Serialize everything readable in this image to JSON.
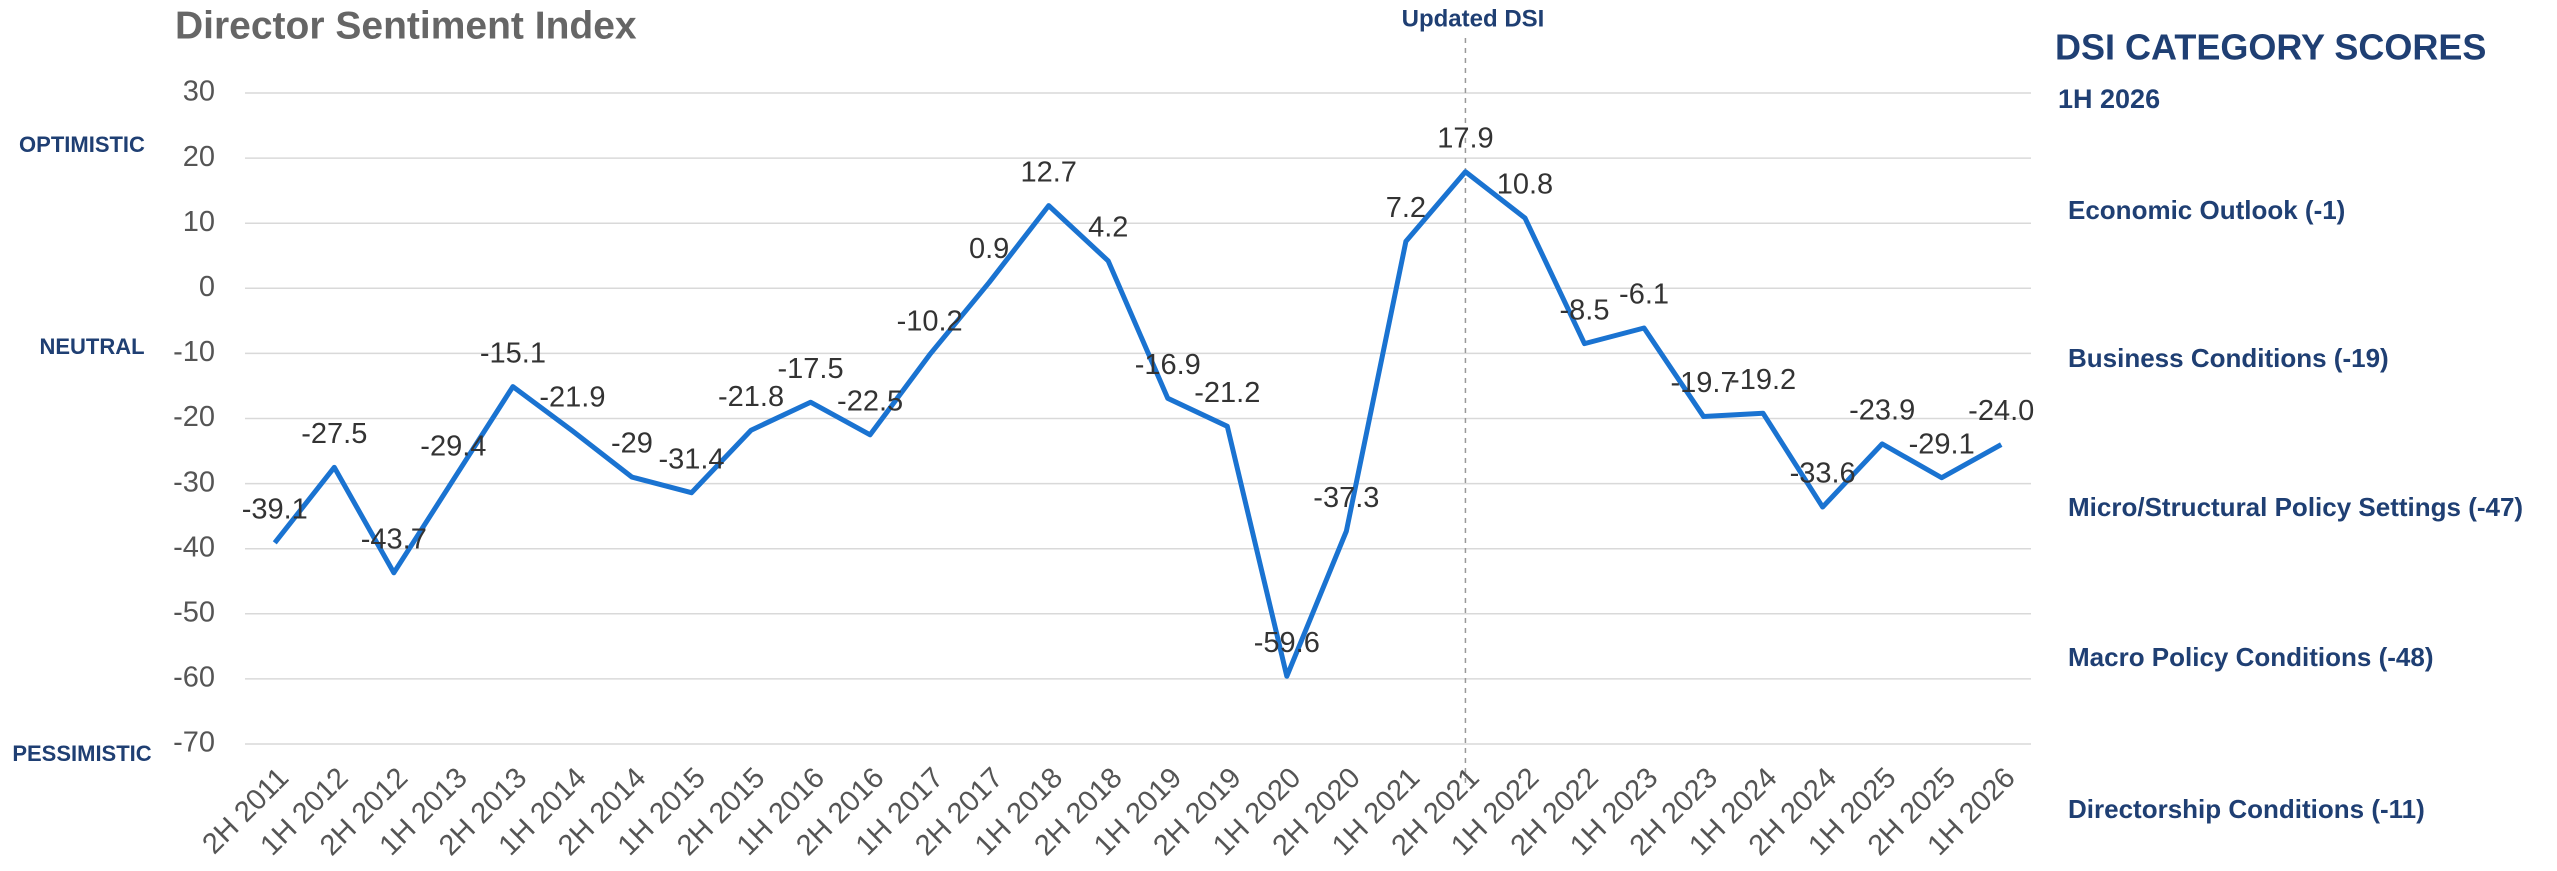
{
  "chart_data": {
    "type": "line",
    "title": "Director Sentiment Index",
    "categories": [
      "2H 2011",
      "1H 2012",
      "2H 2012",
      "1H 2013",
      "2H 2013",
      "1H 2014",
      "2H 2014",
      "1H 2015",
      "2H 2015",
      "1H 2016",
      "2H 2016",
      "1H 2017",
      "2H 2017",
      "1H 2018",
      "2H 2018",
      "1H 2019",
      "2H 2019",
      "1H 2020",
      "2H 2020",
      "1H 2021",
      "2H 2021",
      "1H 2022",
      "2H 2022",
      "1H 2023",
      "2H 2023",
      "1H 2024",
      "2H 2024",
      "1H 2025",
      "2H 2025",
      "1H 2026"
    ],
    "values": [
      -39.1,
      -27.5,
      -43.7,
      -29.4,
      -15.1,
      -21.9,
      -29,
      -31.4,
      -21.8,
      -17.5,
      -22.5,
      -10.2,
      0.9,
      12.7,
      4.2,
      -16.9,
      -21.2,
      -59.6,
      -37.3,
      7.2,
      17.9,
      10.8,
      -8.5,
      -6.1,
      -19.7,
      -19.2,
      -33.6,
      -23.9,
      -29.1,
      -24.0
    ],
    "value_labels": [
      "-39.1",
      "-27.5",
      "-43.7",
      "-29.4",
      "-15.1",
      "-21.9",
      "-29",
      "-31.4",
      "-21.8",
      "-17.5",
      "-22.5",
      "-10.2",
      "0.9",
      "12.7",
      "4.2",
      "-16.9",
      "-21.2",
      "-59.6",
      "-37.3",
      "7.2",
      "17.9",
      "10.8",
      "-8.5",
      "-6.1",
      "-19.7",
      "-19.2",
      "-33.6",
      "-23.9",
      "-29.1",
      "-24.0"
    ],
    "color": "#1a73d1",
    "ylim": [
      -70,
      30
    ],
    "yticks": [
      -70,
      -60,
      -50,
      -40,
      -30,
      -20,
      -10,
      0,
      10,
      20,
      30
    ],
    "grid": true,
    "annotation": "Updated DSI",
    "sentiment_labels": [
      "OPTIMISTIC",
      "NEUTRAL",
      "PESSIMISTIC"
    ]
  },
  "panel": {
    "title": "DSI CATEGORY SCORES",
    "period": "1H 2026",
    "items": [
      "Economic Outlook (-1)",
      "Business Conditions (-19)",
      "Micro/Structural Policy Settings (-47)",
      "Macro Policy Conditions (-48)",
      "Directorship Conditions (-11)"
    ]
  }
}
